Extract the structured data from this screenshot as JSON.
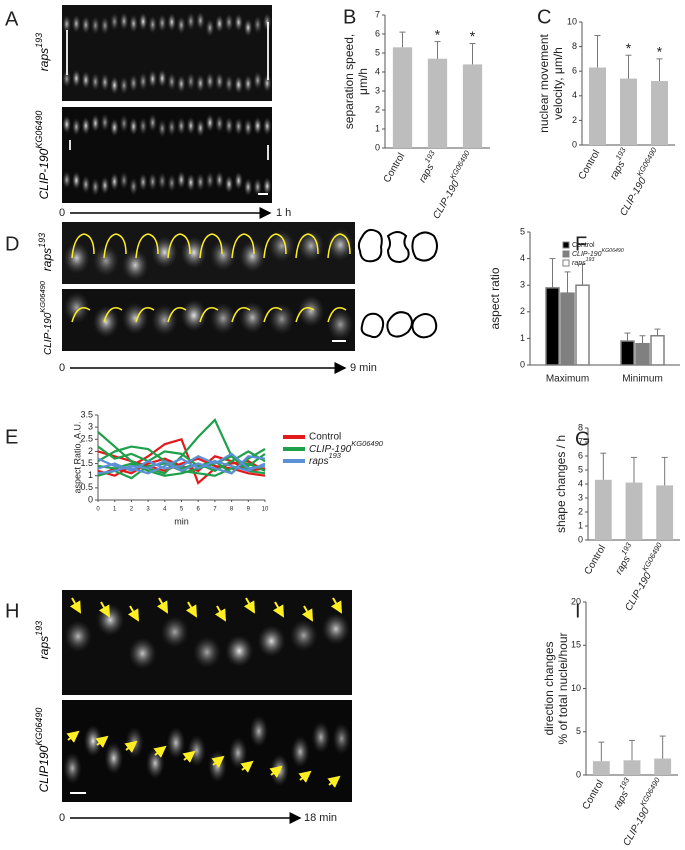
{
  "figure": {
    "letters": [
      "A",
      "B",
      "C",
      "D",
      "E",
      "F",
      "G",
      "H",
      "I"
    ],
    "image_labels": [
      "raps193",
      "CLIP-190KG06490",
      "raps193",
      "CLIP-190KG06490",
      "raps193",
      "CLIP190KG06490"
    ],
    "time_axes": [
      {
        "start": "0",
        "end": "1 h"
      },
      {
        "start": "0",
        "end": "9 min"
      },
      {
        "start": "0",
        "end": "18 min"
      }
    ]
  },
  "chart_data": [
    {
      "type": "bar",
      "y_label": [
        "separation speed,",
        "μm/h"
      ],
      "categories": [
        "Control",
        "raps193",
        "CLIP-190KG06490"
      ],
      "values": [
        5.3,
        4.7,
        4.4
      ],
      "errors": [
        0.8,
        0.9,
        1.1
      ],
      "annotations": [
        null,
        "*",
        "*"
      ],
      "color": "#bdbdbd",
      "ylim": [
        0,
        7
      ],
      "yticks": [
        0,
        1,
        2,
        3,
        4,
        5,
        6,
        7
      ]
    },
    {
      "type": "bar",
      "y_label": [
        "nuclear movement",
        "velocity, μm/h"
      ],
      "categories": [
        "Control",
        "raps193",
        "CLIP-190KG06490"
      ],
      "values": [
        6.3,
        5.4,
        5.2
      ],
      "errors": [
        2.6,
        1.9,
        1.8
      ],
      "annotations": [
        null,
        "*",
        "*"
      ],
      "color": "#bdbdbd",
      "ylim": [
        0,
        10
      ],
      "yticks": [
        0,
        2,
        4,
        6,
        8,
        10
      ]
    },
    {
      "type": "grouped_bar",
      "y_label": [
        "aspect ratio"
      ],
      "categories": [
        "Maximum",
        "Minimum"
      ],
      "series": [
        {
          "name": "Control",
          "color": "#000000",
          "values": [
            2.9,
            0.9
          ],
          "errors": [
            1.1,
            0.3
          ]
        },
        {
          "name": "CLIP-190KG06490",
          "color": "#808080",
          "values": [
            2.7,
            0.8
          ],
          "errors": [
            0.8,
            0.3
          ]
        },
        {
          "name": "raps193",
          "color": "#ffffff",
          "values": [
            3.0,
            1.1
          ],
          "errors": [
            0.8,
            0.25
          ]
        }
      ],
      "ylim": [
        0,
        5
      ],
      "yticks": [
        0,
        1,
        2,
        3,
        4,
        5
      ]
    },
    {
      "type": "line",
      "y_label": [
        "aspect Ratio, A.U."
      ],
      "x_label": "min",
      "x": [
        0,
        1,
        2,
        3,
        4,
        5,
        6,
        7,
        8,
        9,
        10
      ],
      "xlim": [
        0,
        10
      ],
      "xticks": [
        0,
        1,
        2,
        3,
        4,
        5,
        6,
        7,
        8,
        9,
        10
      ],
      "ylim": [
        0,
        3.5
      ],
      "yticks": [
        0,
        0.5,
        1,
        1.5,
        2,
        2.5,
        3,
        3.5
      ],
      "series": [
        {
          "name": "Control",
          "color": "#e31a1c",
          "values": [
            [
              1.2,
              1.0,
              1.4,
              1.8,
              2.3,
              2.5,
              0.7,
              1.3,
              1.5,
              1.6,
              1.2
            ],
            [
              2.0,
              1.8,
              1.6,
              1.4,
              1.2,
              1.5,
              1.7,
              1.4,
              1.3,
              1.1,
              1.0
            ],
            [
              1.0,
              1.3,
              1.1,
              1.5,
              1.7,
              1.4,
              1.2,
              1.8,
              1.6,
              1.2,
              1.3
            ]
          ]
        },
        {
          "name": "CLIP-190KG06490",
          "color": "#1ea04a",
          "values": [
            [
              2.8,
              2.2,
              1.6,
              1.3,
              1.1,
              1.8,
              2.6,
              3.3,
              1.8,
              1.2,
              1.1
            ],
            [
              1.6,
              2.0,
              2.2,
              2.1,
              1.6,
              1.3,
              1.5,
              1.2,
              1.6,
              2.0,
              1.6
            ],
            [
              1.4,
              1.3,
              1.5,
              1.2,
              1.0,
              1.1,
              1.3,
              1.5,
              1.8,
              1.4,
              1.9
            ],
            [
              2.2,
              1.7,
              1.9,
              1.6,
              2.0,
              1.9,
              1.4,
              1.6,
              1.1,
              1.7,
              2.1
            ],
            [
              1.0,
              1.2,
              0.9,
              1.4,
              1.5,
              1.2,
              1.1,
              1.0,
              1.3,
              1.5,
              1.2
            ]
          ]
        },
        {
          "name": "raps193",
          "color": "#5b8fd6",
          "values": [
            [
              1.3,
              1.5,
              1.2,
              1.6,
              1.3,
              1.4,
              1.8,
              1.5,
              1.9,
              1.3,
              1.4
            ],
            [
              1.1,
              1.2,
              1.4,
              1.3,
              1.6,
              1.2,
              1.5,
              1.3,
              1.1,
              1.8,
              1.7
            ],
            [
              1.7,
              1.4,
              1.3,
              1.1,
              1.4,
              1.7,
              1.3,
              1.6,
              1.4,
              1.2,
              1.5
            ]
          ]
        }
      ]
    },
    {
      "type": "bar",
      "y_label": [
        "shape changes / h"
      ],
      "categories": [
        "Control",
        "raps193",
        "CLIP-190KG06490"
      ],
      "values": [
        4.3,
        4.1,
        3.9
      ],
      "errors": [
        1.9,
        1.8,
        2.0
      ],
      "color": "#bdbdbd",
      "ylim": [
        0,
        8
      ],
      "yticks": [
        0,
        1,
        2,
        3,
        4,
        5,
        6,
        7,
        8
      ]
    },
    {
      "type": "bar",
      "y_label": [
        "direction changes",
        "% of total nuclei/hour"
      ],
      "categories": [
        "Control",
        "raps193",
        "CLIP-190KG06490"
      ],
      "values": [
        1.6,
        1.7,
        1.9
      ],
      "errors": [
        2.2,
        2.3,
        2.6
      ],
      "color": "#bdbdbd",
      "ylim": [
        0,
        20
      ],
      "yticks": [
        0,
        5,
        10,
        15,
        20
      ]
    }
  ]
}
